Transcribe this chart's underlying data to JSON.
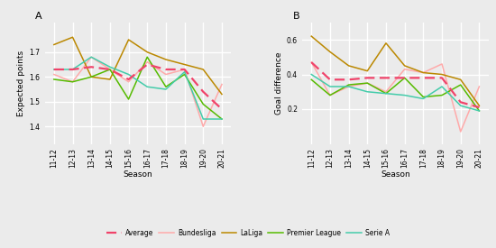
{
  "seasons": [
    "11-12",
    "12-13",
    "13-14",
    "14-15",
    "15-16",
    "16-17",
    "17-18",
    "18-19",
    "19-20",
    "20-21"
  ],
  "panel_A": {
    "title": "A",
    "ylabel": "Expected points",
    "ylim": [
      1.33,
      1.82
    ],
    "yticks": [
      1.4,
      1.5,
      1.6,
      1.7
    ],
    "Average": [
      1.63,
      1.63,
      1.64,
      1.63,
      1.59,
      1.65,
      1.63,
      1.63,
      1.54,
      1.47
    ],
    "Bundesliga": [
      1.61,
      1.58,
      1.68,
      1.63,
      1.58,
      1.66,
      1.61,
      1.63,
      1.4,
      1.57
    ],
    "LaLiga": [
      1.73,
      1.76,
      1.6,
      1.59,
      1.75,
      1.7,
      1.67,
      1.65,
      1.63,
      1.53
    ],
    "Premier League": [
      1.59,
      1.58,
      1.6,
      1.63,
      1.51,
      1.68,
      1.56,
      1.61,
      1.49,
      1.43
    ],
    "Serie A": [
      1.63,
      1.63,
      1.68,
      1.64,
      1.61,
      1.56,
      1.55,
      1.62,
      1.43,
      1.43
    ]
  },
  "panel_B": {
    "title": "B",
    "ylabel": "Goal difference",
    "ylim": [
      0.0,
      0.7
    ],
    "yticks": [
      0.2,
      0.4,
      0.6
    ],
    "Average": [
      0.47,
      0.37,
      0.37,
      0.38,
      0.38,
      0.38,
      0.38,
      0.38,
      0.24,
      0.21
    ],
    "Bundesliga": [
      0.47,
      0.28,
      0.33,
      0.35,
      0.3,
      0.43,
      0.41,
      0.46,
      0.07,
      0.33
    ],
    "LaLiga": [
      0.62,
      0.53,
      0.45,
      0.42,
      0.58,
      0.45,
      0.41,
      0.4,
      0.37,
      0.22
    ],
    "Premier League": [
      0.37,
      0.28,
      0.34,
      0.35,
      0.29,
      0.38,
      0.27,
      0.28,
      0.34,
      0.19
    ],
    "Serie A": [
      0.4,
      0.33,
      0.33,
      0.3,
      0.29,
      0.28,
      0.26,
      0.33,
      0.22,
      0.19
    ]
  },
  "colors": {
    "Average": "#F0436A",
    "Bundesliga": "#FFAAAA",
    "LaLiga": "#BB8800",
    "Premier League": "#55BB00",
    "Serie A": "#44CCAA"
  },
  "legend_order": [
    "Average",
    "Bundesliga",
    "LaLiga",
    "Premier League",
    "Serie A"
  ],
  "bg_color": "#EBEBEB",
  "grid_color": "#FFFFFF",
  "fig_width": 5.5,
  "fig_height": 2.75,
  "dpi": 100
}
